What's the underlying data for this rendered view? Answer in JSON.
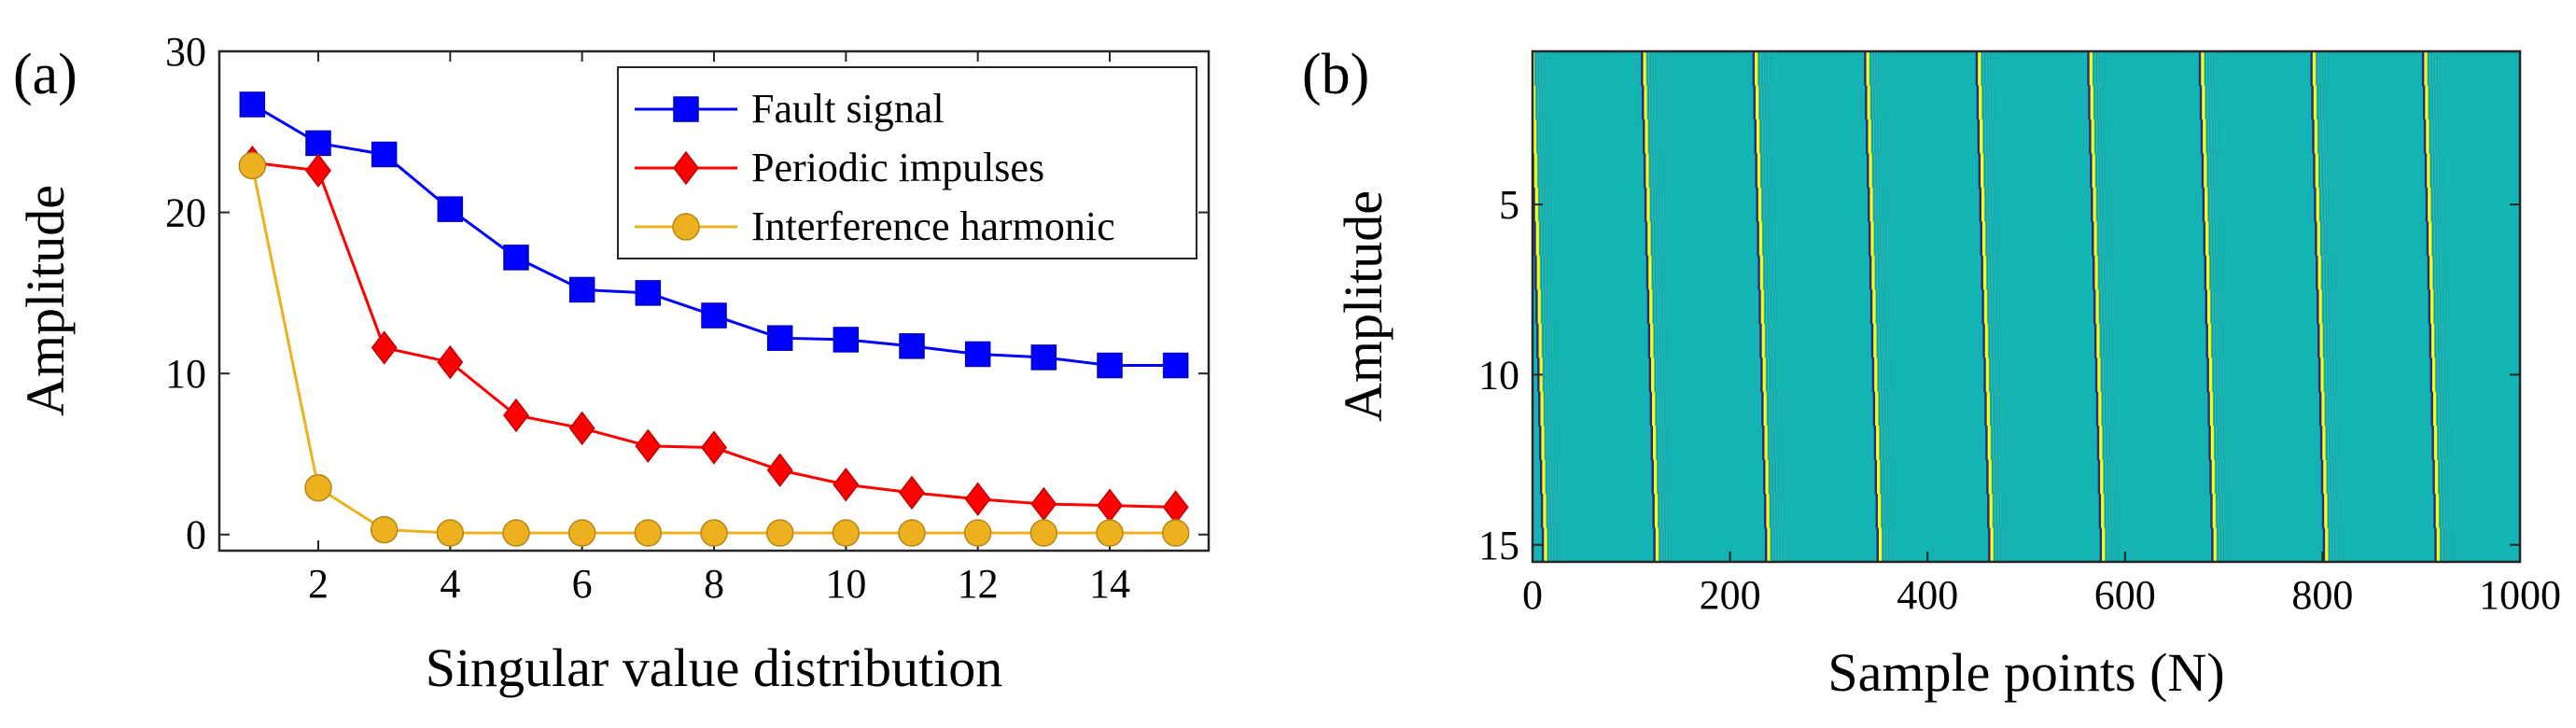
{
  "chart_data": [
    {
      "panel_label": "(a)",
      "type": "line",
      "xlabel": "Singular value distribution",
      "ylabel": "Amplitude",
      "xlim": [
        0.5,
        15.5
      ],
      "ylim": [
        -1,
        30
      ],
      "xticks": [
        2,
        4,
        6,
        8,
        10,
        12,
        14
      ],
      "yticks": [
        0,
        10,
        20,
        30
      ],
      "x": [
        1,
        2,
        3,
        4,
        5,
        6,
        7,
        8,
        9,
        10,
        11,
        12,
        13,
        14,
        15
      ],
      "legend_position": "top-right",
      "series": [
        {
          "name": "Fault signal",
          "color": "#0000ff",
          "marker": "square",
          "values": [
            26.7,
            24.3,
            23.6,
            20.2,
            17.2,
            15.2,
            15.0,
            13.6,
            12.2,
            12.1,
            11.7,
            11.2,
            11.0,
            10.5,
            10.5
          ]
        },
        {
          "name": "Periodic impulses",
          "color": "#ff0000",
          "marker": "diamond",
          "values": [
            23.1,
            22.6,
            11.6,
            10.7,
            7.4,
            6.6,
            5.5,
            5.4,
            4.0,
            3.1,
            2.6,
            2.2,
            1.9,
            1.8,
            1.7
          ]
        },
        {
          "name": "Interference harmonic",
          "color": "#edb120",
          "marker": "circle",
          "values": [
            22.9,
            2.9,
            0.3,
            0.1,
            0.1,
            0.1,
            0.1,
            0.1,
            0.1,
            0.1,
            0.1,
            0.1,
            0.1,
            0.1,
            0.1
          ]
        }
      ]
    },
    {
      "panel_label": "(b)",
      "type": "heatmap",
      "xlabel": "Sample points (N)",
      "ylabel": "Amplitude",
      "xlim": [
        0,
        1000
      ],
      "ylim": [
        15.5,
        0.5
      ],
      "xticks": [
        0,
        200,
        400,
        600,
        800,
        1000
      ],
      "yticks": [
        5,
        10,
        15
      ],
      "background_color": "#14b4b4",
      "impulse_color": "#ffff00",
      "dark_color": "#2a2a8a",
      "impulse_positions": [
        0,
        113,
        226,
        339,
        452,
        565,
        678,
        791,
        904
      ],
      "impulse_drift_per_row": 0.9
    }
  ]
}
